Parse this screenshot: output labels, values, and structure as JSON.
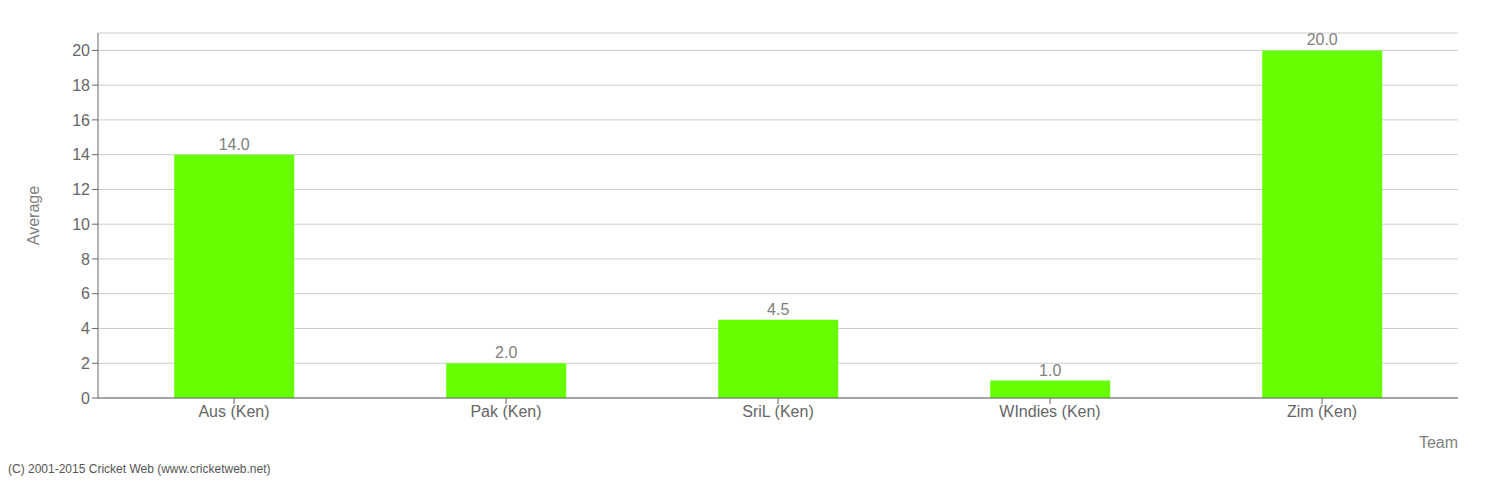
{
  "chart_data": {
    "type": "bar",
    "categories": [
      "Aus (Ken)",
      "Pak (Ken)",
      "SriL (Ken)",
      "WIndies (Ken)",
      "Zim (Ken)"
    ],
    "values": [
      14.0,
      2.0,
      4.5,
      1.0,
      20.0
    ],
    "value_labels": [
      "14.0",
      "2.0",
      "4.5",
      "1.0",
      "20.0"
    ],
    "data_labels": true,
    "color": "#66ff00",
    "xlabel": "Team",
    "ylabel": "Average",
    "ylim": [
      0,
      21
    ],
    "yticks": [
      0,
      2,
      4,
      6,
      8,
      10,
      12,
      14,
      16,
      18,
      20
    ],
    "grid": true,
    "annotations": [
      "(C) 2001-2015 Cricket Web (www.cricketweb.net)"
    ]
  }
}
